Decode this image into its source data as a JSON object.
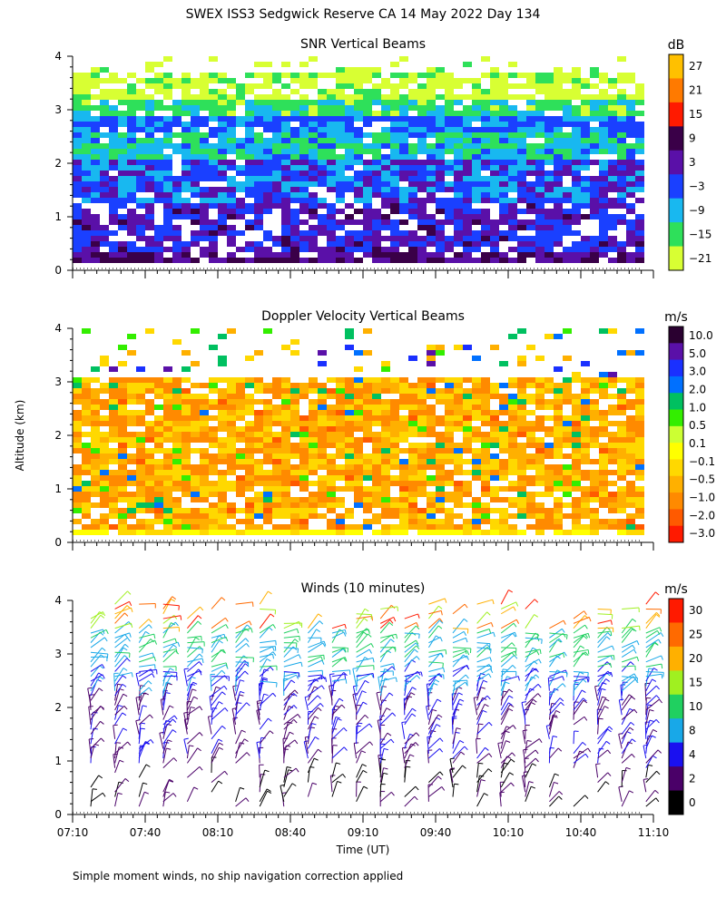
{
  "figure_title": "SWEX ISS3 Sedgwick Reserve CA  14 May 2022 Day 134",
  "footer_note": "Simple moment winds, no ship navigation correction applied",
  "shared_ylabel": "Altitude (km)",
  "shared_xlabel": "Time (UT)",
  "colors": {
    "snr_scale": [
      "#d8ff33",
      "#2ee05a",
      "#18b8f0",
      "#1a40ff",
      "#5a10a8",
      "#3a0048",
      "#ff1a00",
      "#ff7a00",
      "#ffc000"
    ],
    "doppler_scale": [
      "#ff1a00",
      "#ff5a00",
      "#ff8a00",
      "#ffb000",
      "#ffd800",
      "#ffff00",
      "#ccff33",
      "#33ee00",
      "#00c060",
      "#0070ff",
      "#1a30ff",
      "#5a10a8",
      "#2a0030"
    ],
    "wind_scale": [
      "#000000",
      "#4a0068",
      "#1a10f0",
      "#18a8e8",
      "#20d060",
      "#a0f020",
      "#ffb000",
      "#ff6a00",
      "#ff1a00"
    ]
  },
  "chart_data": [
    {
      "type": "heatmap",
      "title": "SNR Vertical Beams",
      "xlabel": "",
      "ylabel": "Altitude (km)",
      "x_range": [
        "07:10",
        "11:10"
      ],
      "ylim": [
        0,
        4
      ],
      "y_ticks": [
        "0",
        "1",
        "2",
        "3",
        "4"
      ],
      "colorbar": {
        "unit": "dB",
        "ticks": [
          "27",
          "21",
          "15",
          "9",
          "3",
          "−3",
          "−9",
          "−15",
          "−21"
        ]
      },
      "approx_pattern": "Strong SNR (blue/purple, about -3 to 9 dB) below about 2 km, persistent blue layer near 2.8 km, weaker green/yellow (about -15 to -21 dB) above 3 km, data gaps (white) scattered throughout"
    },
    {
      "type": "heatmap",
      "title": "Doppler Velocity Vertical Beams",
      "xlabel": "",
      "ylabel": "Altitude (km)",
      "x_range": [
        "07:10",
        "11:10"
      ],
      "ylim": [
        0,
        4
      ],
      "y_ticks": [
        "0",
        "1",
        "2",
        "3",
        "4"
      ],
      "colorbar": {
        "unit": "m/s",
        "ticks": [
          "10.0",
          "5.0",
          "3.0",
          "2.0",
          "1.0",
          "0.5",
          "0.1",
          "−0.1",
          "−0.5",
          "−1.0",
          "−2.0",
          "−3.0"
        ]
      },
      "approx_pattern": "Mostly weak downward velocities (yellow/orange, about -0.1 to -1.0 m/s) from 0.3 to 3 km, yellow near surface, sparse data above 3 km with isolated blue/purple values"
    },
    {
      "type": "scatter",
      "title": "Winds (10 minutes)",
      "xlabel": "Time (UT)",
      "ylabel": "Altitude (km)",
      "x_ticks": [
        "07:10",
        "07:40",
        "08:10",
        "08:40",
        "09:10",
        "09:40",
        "10:10",
        "10:40",
        "11:10"
      ],
      "ylim": [
        0,
        4
      ],
      "y_ticks": [
        "0",
        "1",
        "2",
        "3",
        "4"
      ],
      "colorbar": {
        "unit": "m/s",
        "ticks": [
          "30",
          "25",
          "20",
          "15",
          "10",
          "8",
          "4",
          "2",
          "0"
        ]
      },
      "approx_pattern": "Wind barb profiles every 10 minutes; speeds mostly 2-8 m/s (purple/blue) below 2 km, 10-20 m/s (cyan/green) between 2.5 and 3.5 km, some 20-30 m/s (yellow/orange/red) near 4 km"
    }
  ]
}
